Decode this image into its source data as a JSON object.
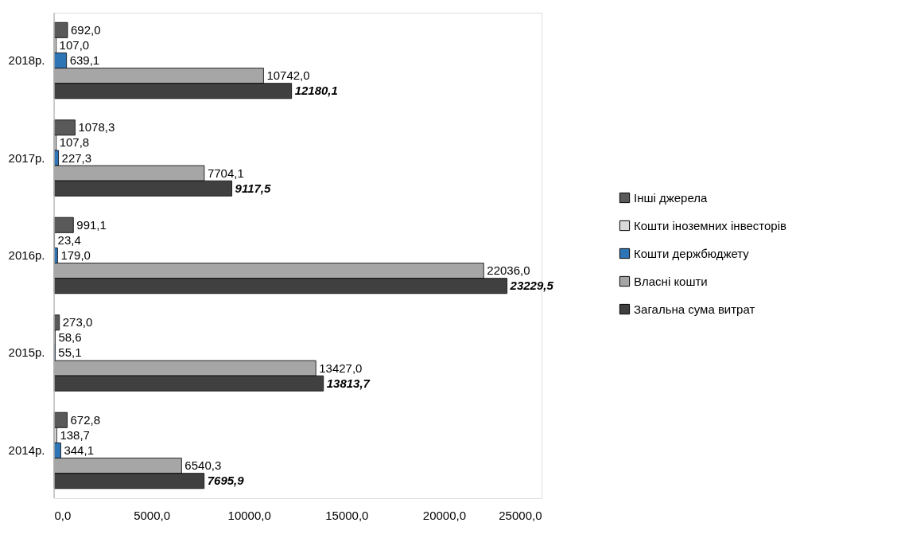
{
  "chart_data": {
    "type": "bar",
    "orientation": "horizontal",
    "categories": [
      "2018р.",
      "2017р.",
      "2016р.",
      "2015р.",
      "2014р."
    ],
    "series": [
      {
        "name": "Інші джерела",
        "color": "#595959",
        "values": [
          692.0,
          1078.3,
          991.1,
          273.0,
          672.8
        ],
        "value_labels": [
          "692,0",
          "1078,3",
          "991,1",
          "273,0",
          "672,8"
        ]
      },
      {
        "name": "Кошти іноземних інвесторів",
        "color": "#d9d9d9",
        "values": [
          107.0,
          107.8,
          23.4,
          58.6,
          138.7
        ],
        "value_labels": [
          "107,0",
          "107,8",
          "23,4",
          "58,6",
          "138,7"
        ]
      },
      {
        "name": "Кошти держбюджету",
        "color": "#2e75b6",
        "values": [
          639.1,
          227.3,
          179.0,
          55.1,
          344.1
        ],
        "value_labels": [
          "639,1",
          "227,3",
          "179,0",
          "55,1",
          "344,1"
        ]
      },
      {
        "name": "Власні кошти",
        "color": "#a6a6a6",
        "values": [
          10742.0,
          7704.1,
          22036.0,
          13427.0,
          6540.3
        ],
        "value_labels": [
          "10742,0",
          "7704,1",
          "22036,0",
          "13427,0",
          "6540,3"
        ]
      },
      {
        "name": "Загальна сума витрат",
        "color": "#404040",
        "values": [
          12180.1,
          9117.5,
          23229.5,
          13813.7,
          7695.9
        ],
        "value_labels": [
          "12180,1",
          "9117,5",
          "23229,5",
          "13813,7",
          "7695,9"
        ]
      }
    ],
    "xlim": [
      0,
      25000
    ],
    "xticks": [
      {
        "value": 0,
        "label": "0,0"
      },
      {
        "value": 5000,
        "label": "5000,0"
      },
      {
        "value": 10000,
        "label": "10000,0"
      },
      {
        "value": 15000,
        "label": "15000,0"
      },
      {
        "value": 20000,
        "label": "20000,0"
      },
      {
        "value": 25000,
        "label": "25000,0"
      }
    ],
    "grid": false,
    "legend": "right"
  }
}
